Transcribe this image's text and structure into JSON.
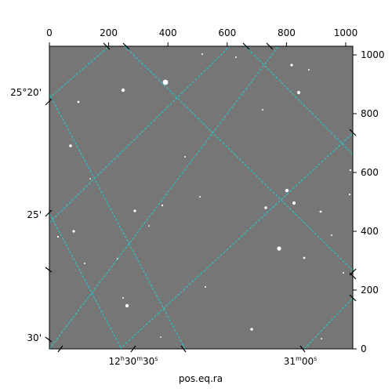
{
  "colors": {
    "background": "#7a7a7a",
    "grid": "#19d4d4",
    "frame": "#000000"
  },
  "top_axis": {
    "ticks": [
      "0",
      "200",
      "400",
      "600",
      "800",
      "1000"
    ]
  },
  "right_axis": {
    "ticks": [
      "0",
      "200",
      "400",
      "600",
      "800",
      "1000"
    ]
  },
  "left_axis": {
    "ticks": [
      "25°20'",
      "25'",
      "30'"
    ]
  },
  "bottom_axis": {
    "ticks": [
      {
        "hours": "12",
        "minutes": "30",
        "seconds": "30",
        "hu": "h",
        "mu": "m",
        "su": "s"
      },
      {
        "minutes": "31",
        "seconds": "00",
        "mu": "m",
        "su": "s"
      }
    ],
    "label": "pos.eq.ra"
  }
}
